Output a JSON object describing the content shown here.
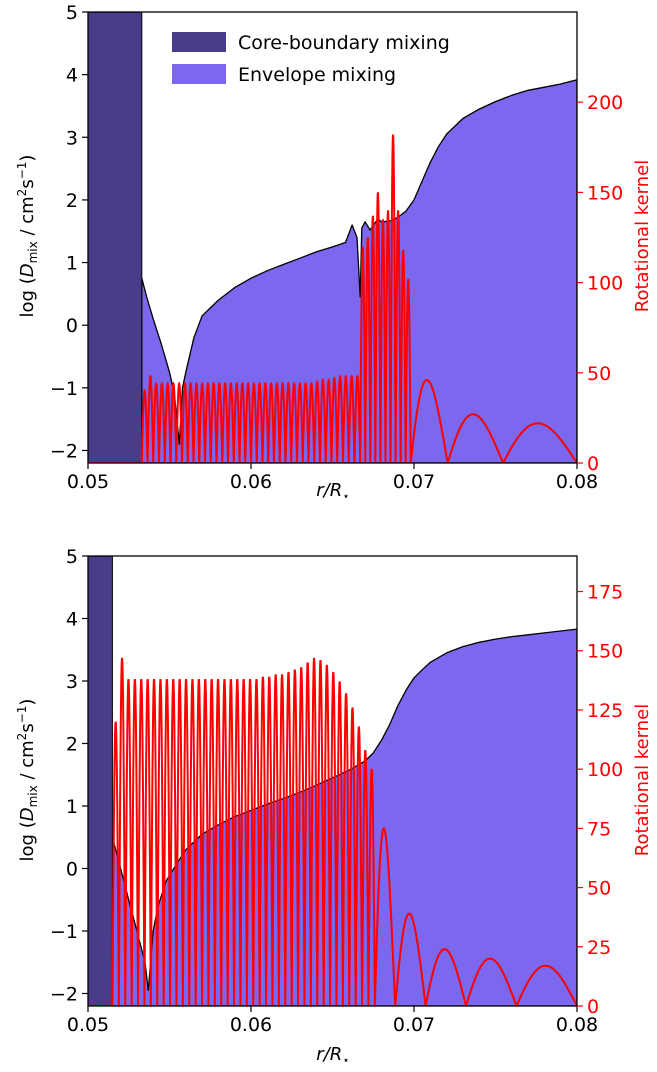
{
  "colors": {
    "core": "#483D8B",
    "envelope": "#7B68EE",
    "kernel": "#FF0000",
    "axis": "#000000"
  },
  "legend": {
    "position": "top-center",
    "entries": [
      "Core-boundary mixing",
      "Envelope mixing"
    ]
  },
  "chart_data": [
    {
      "type": "area",
      "panel": "top",
      "xlabel": "r/R⋆",
      "ylabel": "log (Dmix / cm²s⁻¹)",
      "y2label": "Rotational kernel",
      "xlim": [
        0.05,
        0.08
      ],
      "ylim": [
        -2.2,
        5
      ],
      "y2lim": [
        0,
        250
      ],
      "x_ticks": [
        "0.05",
        "0.06",
        "0.07",
        "0.08"
      ],
      "y_ticks": [
        "−2",
        "−1",
        "0",
        "1",
        "2",
        "3",
        "4",
        "5"
      ],
      "y2_ticks": [
        "0",
        "50",
        "100",
        "150",
        "200"
      ],
      "core_boundary_x": 0.0533,
      "envelope_mixing": {
        "x": [
          0.0533,
          0.0536,
          0.054,
          0.0545,
          0.055,
          0.0553,
          0.0556,
          0.0558,
          0.056,
          0.0565,
          0.057,
          0.058,
          0.059,
          0.06,
          0.061,
          0.062,
          0.063,
          0.064,
          0.065,
          0.0658,
          0.0662,
          0.0665,
          0.0667,
          0.0668,
          0.067,
          0.0673,
          0.0678,
          0.068,
          0.0685,
          0.069,
          0.0695,
          0.07,
          0.0705,
          0.071,
          0.0715,
          0.072,
          0.073,
          0.074,
          0.075,
          0.076,
          0.077,
          0.078,
          0.079,
          0.08
        ],
        "y": [
          0.75,
          0.45,
          0.1,
          -0.3,
          -0.75,
          -1.1,
          -1.9,
          -1.0,
          -0.75,
          -0.2,
          0.15,
          0.4,
          0.6,
          0.75,
          0.87,
          0.97,
          1.07,
          1.17,
          1.25,
          1.32,
          1.6,
          1.4,
          0.45,
          1.55,
          1.65,
          1.52,
          1.7,
          1.65,
          1.66,
          1.72,
          1.82,
          2.0,
          2.3,
          2.6,
          2.85,
          3.05,
          3.3,
          3.45,
          3.57,
          3.67,
          3.75,
          3.8,
          3.85,
          3.92
        ]
      },
      "rotational_kernel": {
        "segments": [
          {
            "x_start": 0.0533,
            "x_end": 0.0667,
            "wavelength": 0.00036,
            "amplitude": 44,
            "peaks": [
              40,
              48,
              44,
              44,
              44,
              44,
              44,
              44,
              44,
              44,
              44,
              44,
              44,
              44,
              44,
              44,
              44,
              44,
              44,
              44,
              44,
              44,
              44,
              44,
              44,
              44,
              44,
              44,
              44,
              44,
              45,
              46,
              46,
              47,
              48,
              48,
              48,
              48
            ]
          },
          {
            "x_start": 0.0667,
            "x_end": 0.0698,
            "wavelength": 0.000285,
            "amplitude": 130,
            "peaks": [
              120,
              125,
              137,
              150,
              135,
              140,
              182,
              140,
              118,
              102
            ]
          },
          {
            "x_start": 0.0698,
            "x_end": 0.08,
            "wavelength_start": 0.0015,
            "wavelength_end": 0.0045,
            "peaks": [
              46,
              27,
              22
            ]
          }
        ]
      }
    },
    {
      "type": "area",
      "panel": "bottom",
      "xlabel": "r/R⋆",
      "ylabel": "log (Dmix / cm²s⁻¹)",
      "y2label": "Rotational kernel",
      "xlim": [
        0.05,
        0.08
      ],
      "ylim": [
        -2.2,
        5
      ],
      "y2lim": [
        0,
        190
      ],
      "x_ticks": [
        "0.05",
        "0.06",
        "0.07",
        "0.08"
      ],
      "y_ticks": [
        "−2",
        "−1",
        "0",
        "1",
        "2",
        "3",
        "4",
        "5"
      ],
      "y2_ticks": [
        "0",
        "25",
        "50",
        "75",
        "100",
        "125",
        "150",
        "175"
      ],
      "core_boundary_x": 0.0515,
      "envelope_mixing": {
        "x": [
          0.0515,
          0.052,
          0.0525,
          0.053,
          0.0535,
          0.0537,
          0.0539,
          0.054,
          0.0543,
          0.0548,
          0.0555,
          0.056,
          0.057,
          0.058,
          0.059,
          0.06,
          0.061,
          0.062,
          0.063,
          0.064,
          0.065,
          0.066,
          0.067,
          0.0675,
          0.068,
          0.0685,
          0.069,
          0.0695,
          0.07,
          0.0705,
          0.071,
          0.072,
          0.073,
          0.074,
          0.075,
          0.076,
          0.077,
          0.078,
          0.079,
          0.08
        ],
        "y": [
          0.5,
          0.0,
          -0.5,
          -1.0,
          -1.5,
          -1.95,
          -1.3,
          -1.0,
          -0.6,
          -0.2,
          0.1,
          0.3,
          0.55,
          0.7,
          0.83,
          0.93,
          1.03,
          1.12,
          1.22,
          1.33,
          1.45,
          1.57,
          1.72,
          1.85,
          2.05,
          2.3,
          2.6,
          2.85,
          3.05,
          3.18,
          3.3,
          3.45,
          3.55,
          3.62,
          3.67,
          3.71,
          3.74,
          3.77,
          3.8,
          3.83
        ]
      },
      "rotational_kernel": {
        "segments": [
          {
            "x_start": 0.0515,
            "x_end": 0.0676,
            "wavelength": 0.00039,
            "amplitude": 138,
            "peaks": [
              120,
              147,
              138,
              138,
              138,
              138,
              138,
              138,
              138,
              138,
              138,
              138,
              138,
              138,
              138,
              138,
              138,
              138,
              138,
              138,
              138,
              138,
              138,
              139,
              139,
              140,
              140,
              141,
              142,
              143,
              145,
              147,
              146,
              144,
              141,
              137,
              132,
              126,
              118,
              108,
              100
            ]
          },
          {
            "x_start": 0.0676,
            "x_end": 0.08,
            "wavelength_start": 0.0011,
            "wavelength_end": 0.0047,
            "peaks": [
              75,
              39,
              24,
              20,
              17
            ]
          }
        ]
      }
    }
  ]
}
